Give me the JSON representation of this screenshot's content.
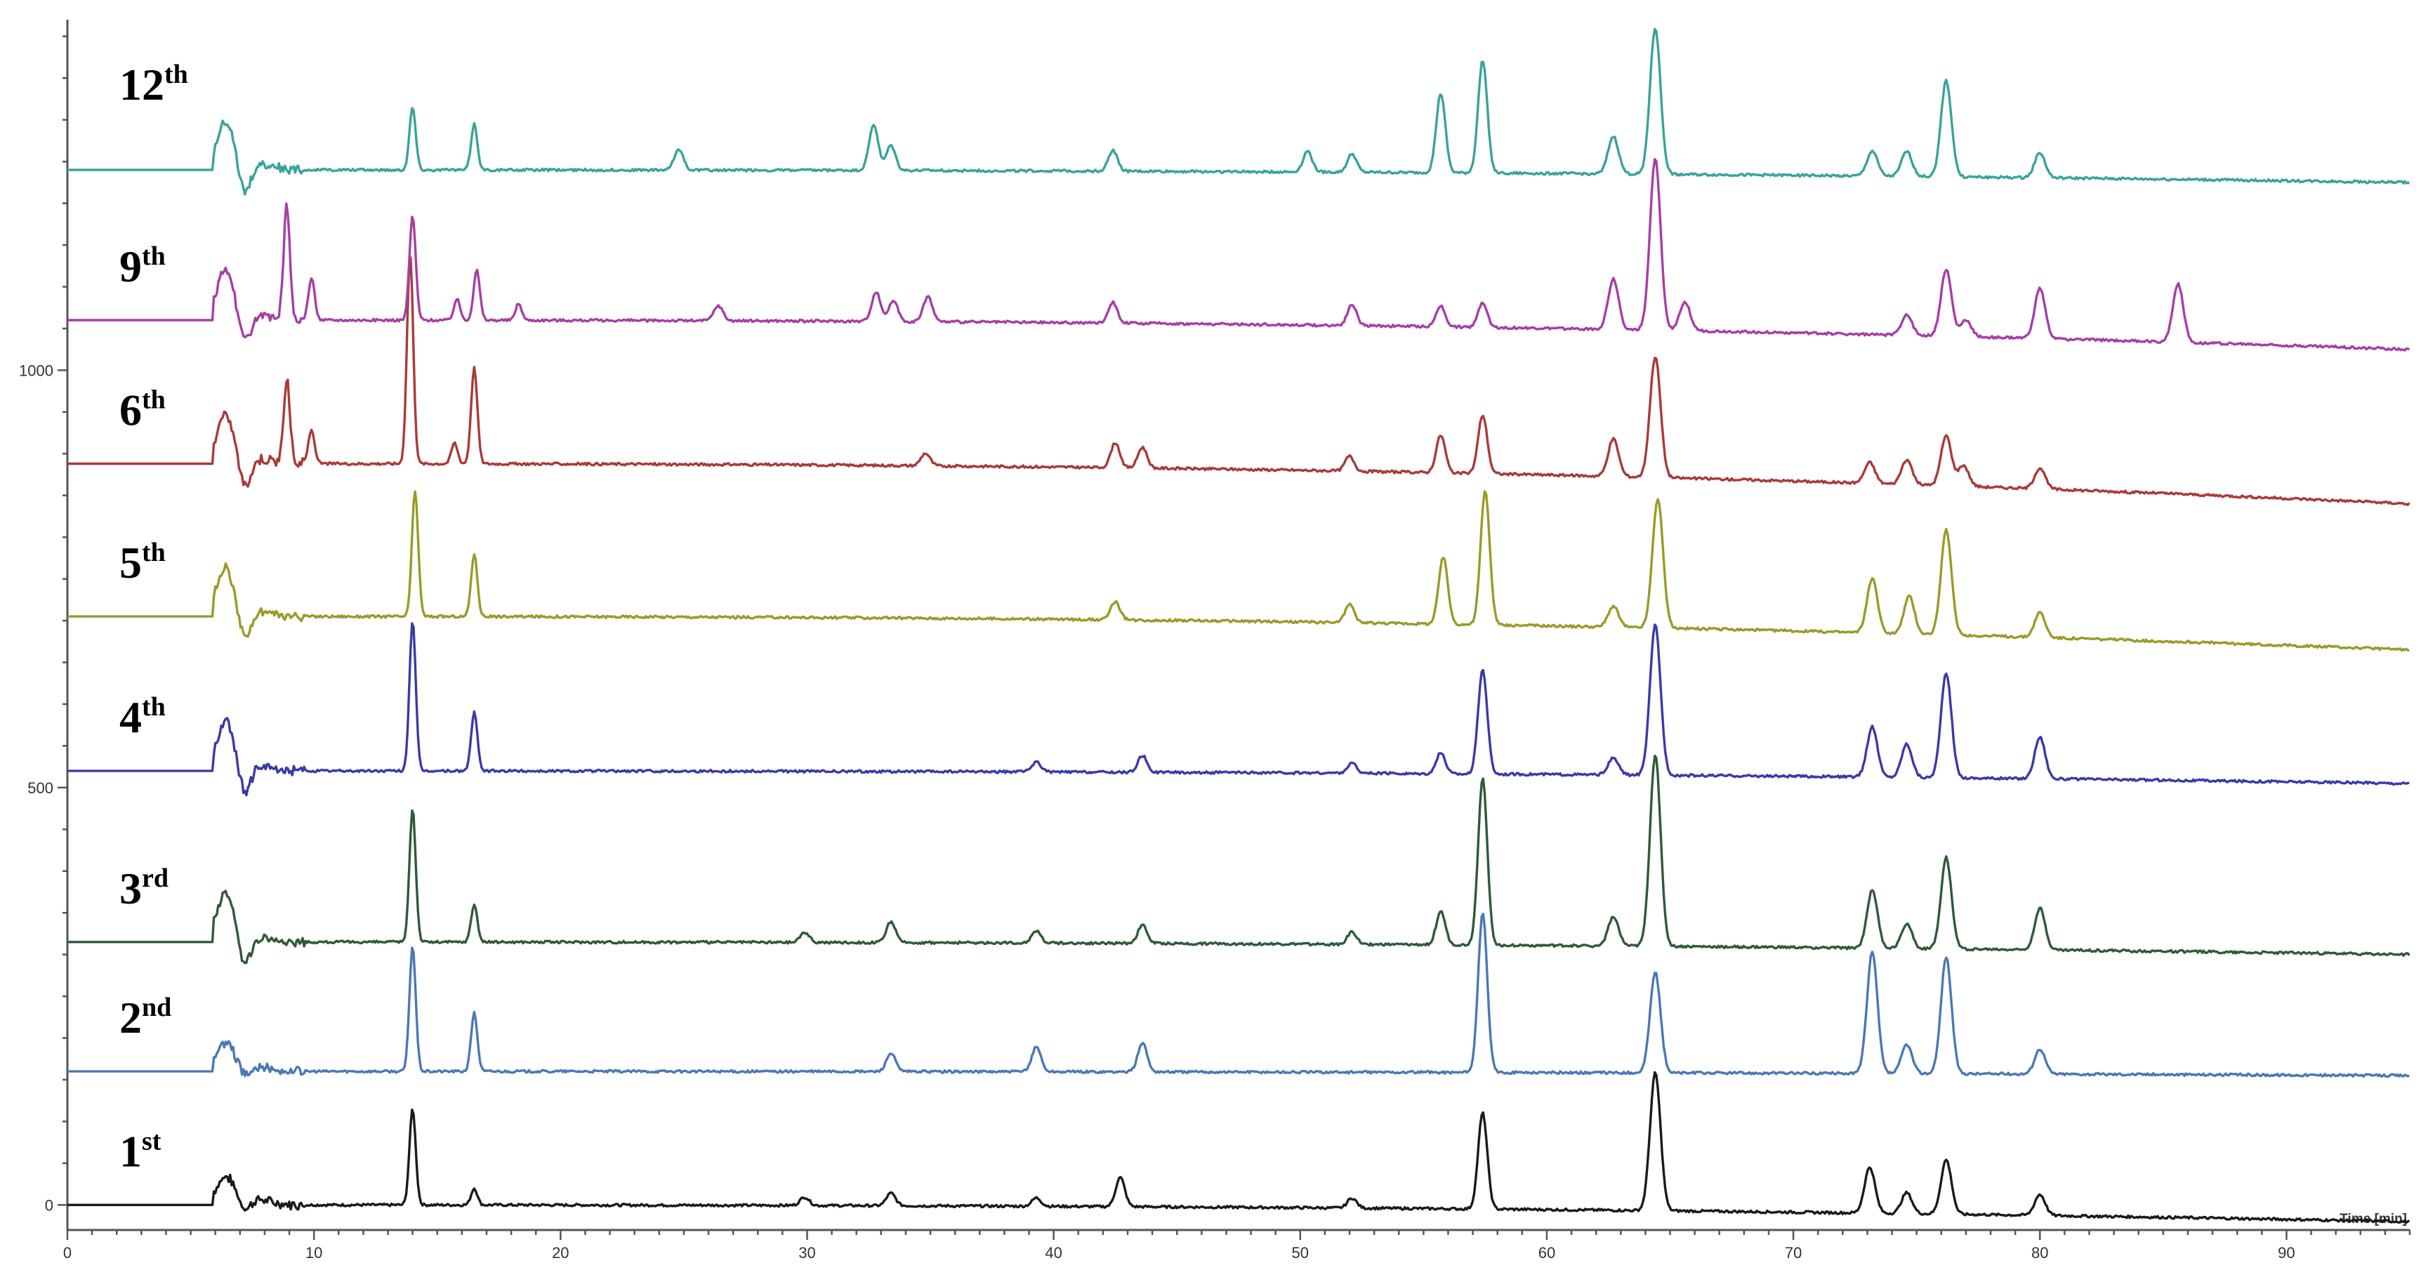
{
  "chart_data": {
    "type": "line",
    "title": "",
    "xlabel": "Time [min]",
    "ylabel": "",
    "xlim": [
      0,
      95
    ],
    "ylim": [
      -30,
      1420
    ],
    "x_ticks": [
      0,
      10,
      20,
      30,
      40,
      50,
      60,
      70,
      80,
      90
    ],
    "x_tick_labels": [
      "0",
      "10",
      "20",
      "30",
      "40",
      "50",
      "60",
      "70",
      "80",
      "90"
    ],
    "y_ticks": [
      0,
      500,
      1000
    ],
    "y_tick_labels": [
      "0",
      "500",
      "1000"
    ],
    "grid": false,
    "legend": "none",
    "series": [
      {
        "name": "1st",
        "ordinal": "1",
        "suffix": "st",
        "color": "#1a1a1a",
        "baseline": 0,
        "drift_end": -20,
        "peaks": [
          [
            14.0,
            115
          ],
          [
            16.5,
            20
          ],
          [
            29.9,
            10
          ],
          [
            33.4,
            15
          ],
          [
            39.3,
            10
          ],
          [
            42.7,
            35
          ],
          [
            52.1,
            12
          ],
          [
            57.4,
            115
          ],
          [
            64.4,
            165
          ],
          [
            73.1,
            55
          ],
          [
            74.6,
            25
          ],
          [
            76.2,
            65
          ],
          [
            80.0,
            25
          ]
        ]
      },
      {
        "name": "2nd",
        "ordinal": "2",
        "suffix": "nd",
        "color": "#4b78b4",
        "baseline": 160,
        "drift_end": 155,
        "peaks": [
          [
            14.0,
            150
          ],
          [
            16.5,
            70
          ],
          [
            33.4,
            22
          ],
          [
            39.3,
            30
          ],
          [
            43.6,
            35
          ],
          [
            57.4,
            190
          ],
          [
            64.4,
            120
          ],
          [
            73.2,
            145
          ],
          [
            74.6,
            35
          ],
          [
            76.2,
            140
          ],
          [
            80.0,
            30
          ]
        ]
      },
      {
        "name": "3rd",
        "ordinal": "3",
        "suffix": "rd",
        "color": "#2f5a38",
        "baseline": 315,
        "drift_end": 300,
        "peaks": [
          [
            14.0,
            160
          ],
          [
            16.5,
            45
          ],
          [
            29.9,
            12
          ],
          [
            33.4,
            25
          ],
          [
            39.3,
            15
          ],
          [
            43.6,
            22
          ],
          [
            52.1,
            15
          ],
          [
            55.7,
            40
          ],
          [
            57.4,
            200
          ],
          [
            62.7,
            35
          ],
          [
            64.4,
            230
          ],
          [
            73.2,
            70
          ],
          [
            74.6,
            30
          ],
          [
            76.2,
            110
          ],
          [
            80.0,
            50
          ]
        ]
      },
      {
        "name": "4th",
        "ordinal": "4",
        "suffix": "th",
        "color": "#3a3aa8",
        "baseline": 520,
        "drift_end": 505,
        "peaks": [
          [
            14.0,
            180
          ],
          [
            16.5,
            70
          ],
          [
            39.3,
            12
          ],
          [
            43.6,
            20
          ],
          [
            52.1,
            12
          ],
          [
            55.7,
            25
          ],
          [
            57.4,
            125
          ],
          [
            62.7,
            20
          ],
          [
            64.4,
            180
          ],
          [
            73.2,
            60
          ],
          [
            74.6,
            40
          ],
          [
            76.2,
            125
          ],
          [
            80.0,
            50
          ]
        ]
      },
      {
        "name": "5th",
        "ordinal": "5",
        "suffix": "th",
        "color": "#9a9a2a",
        "baseline": 705,
        "drift_end": 665,
        "peaks": [
          [
            14.1,
            150
          ],
          [
            16.5,
            75
          ],
          [
            42.5,
            22
          ],
          [
            52.0,
            22
          ],
          [
            55.8,
            80
          ],
          [
            57.5,
            160
          ],
          [
            62.7,
            25
          ],
          [
            64.5,
            155
          ],
          [
            73.2,
            65
          ],
          [
            74.7,
            45
          ],
          [
            76.2,
            125
          ],
          [
            80.0,
            30
          ]
        ]
      },
      {
        "name": "6th",
        "ordinal": "6",
        "suffix": "th",
        "color": "#a83a3a",
        "baseline": 888,
        "drift_end": 840,
        "peaks": [
          [
            8.9,
            100
          ],
          [
            9.9,
            40
          ],
          [
            13.9,
            250
          ],
          [
            15.7,
            25
          ],
          [
            16.5,
            115
          ],
          [
            34.8,
            15
          ],
          [
            42.5,
            30
          ],
          [
            43.6,
            25
          ],
          [
            52.0,
            18
          ],
          [
            55.7,
            45
          ],
          [
            57.4,
            70
          ],
          [
            62.7,
            45
          ],
          [
            64.4,
            145
          ],
          [
            73.1,
            25
          ],
          [
            74.6,
            30
          ],
          [
            76.2,
            60
          ],
          [
            76.9,
            25
          ],
          [
            80.0,
            25
          ]
        ]
      },
      {
        "name": "9th",
        "ordinal": "9",
        "suffix": "th",
        "color": "#a63ea6",
        "baseline": 1060,
        "drift_end": 1025,
        "peaks": [
          [
            8.9,
            135
          ],
          [
            9.9,
            50
          ],
          [
            14.0,
            125
          ],
          [
            15.8,
            25
          ],
          [
            16.6,
            60
          ],
          [
            18.3,
            20
          ],
          [
            26.4,
            18
          ],
          [
            32.8,
            35
          ],
          [
            33.5,
            25
          ],
          [
            34.9,
            30
          ],
          [
            42.4,
            25
          ],
          [
            52.1,
            25
          ],
          [
            55.7,
            25
          ],
          [
            57.4,
            30
          ],
          [
            62.7,
            60
          ],
          [
            64.4,
            205
          ],
          [
            65.6,
            35
          ],
          [
            74.6,
            25
          ],
          [
            76.2,
            80
          ],
          [
            77.0,
            20
          ],
          [
            80.0,
            60
          ],
          [
            85.6,
            70
          ]
        ]
      },
      {
        "name": "12th",
        "ordinal": "12",
        "suffix": "th",
        "color": "#3aa39a",
        "baseline": 1240,
        "drift_end": 1225,
        "peaks": [
          [
            14.0,
            75
          ],
          [
            16.5,
            55
          ],
          [
            24.8,
            25
          ],
          [
            32.7,
            55
          ],
          [
            33.4,
            30
          ],
          [
            42.4,
            25
          ],
          [
            50.3,
            25
          ],
          [
            52.1,
            22
          ],
          [
            55.7,
            95
          ],
          [
            57.4,
            135
          ],
          [
            62.7,
            45
          ],
          [
            64.4,
            175
          ],
          [
            73.2,
            30
          ],
          [
            74.6,
            30
          ],
          [
            76.2,
            115
          ],
          [
            80.0,
            30
          ]
        ]
      }
    ]
  }
}
